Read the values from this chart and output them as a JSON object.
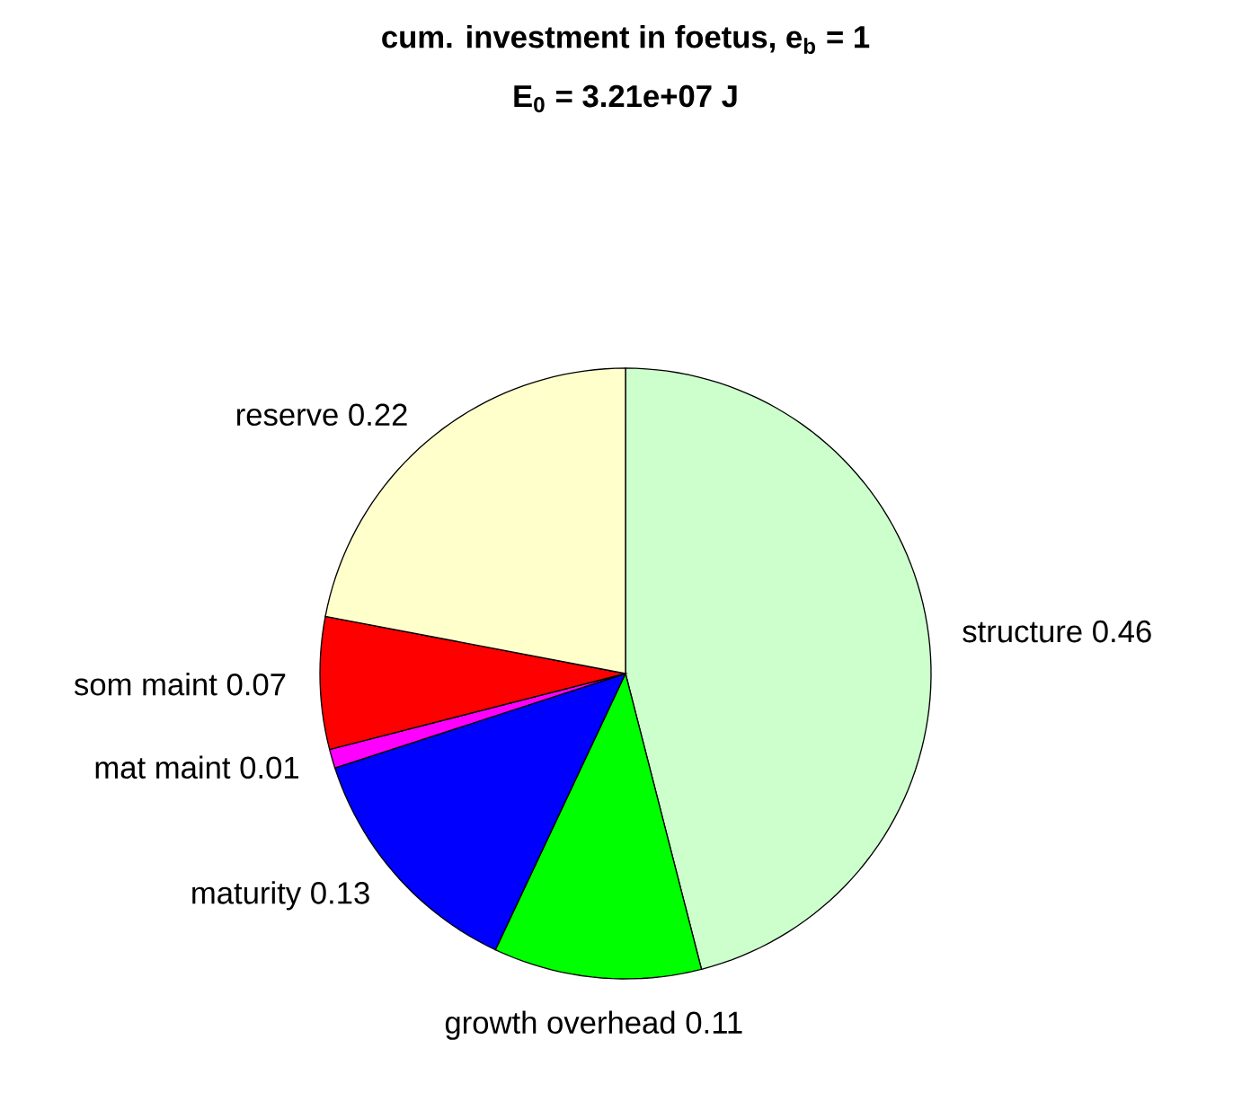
{
  "chart_data": {
    "type": "pie",
    "title": "cum. investment in foetus, e$_{b}$ = 1",
    "subtitle": "E$_{0}$ = 3.21e+07 J",
    "categories": [
      "structure",
      "growth overhead",
      "maturity",
      "mat maint",
      "som maint",
      "reserve"
    ],
    "values": [
      0.46,
      0.11,
      0.13,
      0.01,
      0.07,
      0.22
    ],
    "value_labels": [
      "0.46",
      "0.11",
      "0.13",
      "0.01",
      "0.07",
      "0.22"
    ],
    "colors": [
      "#ccffcc",
      "#00ff00",
      "#0000ff",
      "#ff00ff",
      "#ff0000",
      "#ffffcc"
    ]
  }
}
